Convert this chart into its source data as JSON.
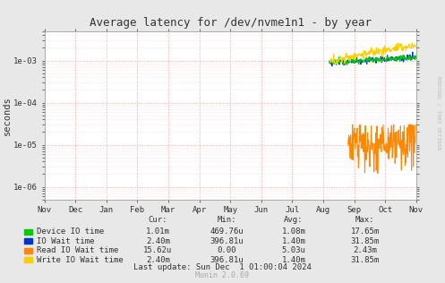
{
  "title": "Average latency for /dev/nvme1n1 - by year",
  "ylabel": "seconds",
  "watermark": "RRDTOOL / TOBI OETIKER",
  "munin_version": "Munin 2.0.69",
  "last_update": "Last update: Sun Dec  1 01:00:04 2024",
  "bg_color": "#e8e8e8",
  "plot_bg_color": "#ffffff",
  "grid_color": "#ff6666",
  "x_months": [
    "Nov",
    "Dec",
    "Jan",
    "Feb",
    "Mar",
    "Apr",
    "May",
    "Jun",
    "Jul",
    "Aug",
    "Sep",
    "Oct",
    "Nov"
  ],
  "x_ticks": [
    0,
    1,
    2,
    3,
    4,
    5,
    6,
    7,
    8,
    9,
    10,
    11,
    12
  ],
  "ytick_vals": [
    1e-06,
    1e-05,
    0.0001,
    0.001
  ],
  "ytick_labels": [
    "1e-06",
    "1e-05",
    "1e-04",
    "1e-03"
  ],
  "ymin": 5e-07,
  "ymax": 0.005,
  "colors": {
    "device_io": "#00cc00",
    "io_wait": "#0033cc",
    "read_io_wait": "#ff8800",
    "write_io_wait": "#ffcc00"
  },
  "legend_rows": [
    [
      "Device IO time",
      "1.01m",
      "469.76u",
      "1.08m",
      "17.65m"
    ],
    [
      "IO Wait time",
      "2.40m",
      "396.81u",
      "1.40m",
      "31.85m"
    ],
    [
      "Read IO Wait time",
      "15.62u",
      "0.00",
      "5.03u",
      "2.43m"
    ],
    [
      "Write IO Wait time",
      "2.40m",
      "396.81u",
      "1.40m",
      "31.85m"
    ]
  ],
  "legend_colors": [
    "#00cc00",
    "#0033cc",
    "#ff8800",
    "#ffcc00"
  ]
}
